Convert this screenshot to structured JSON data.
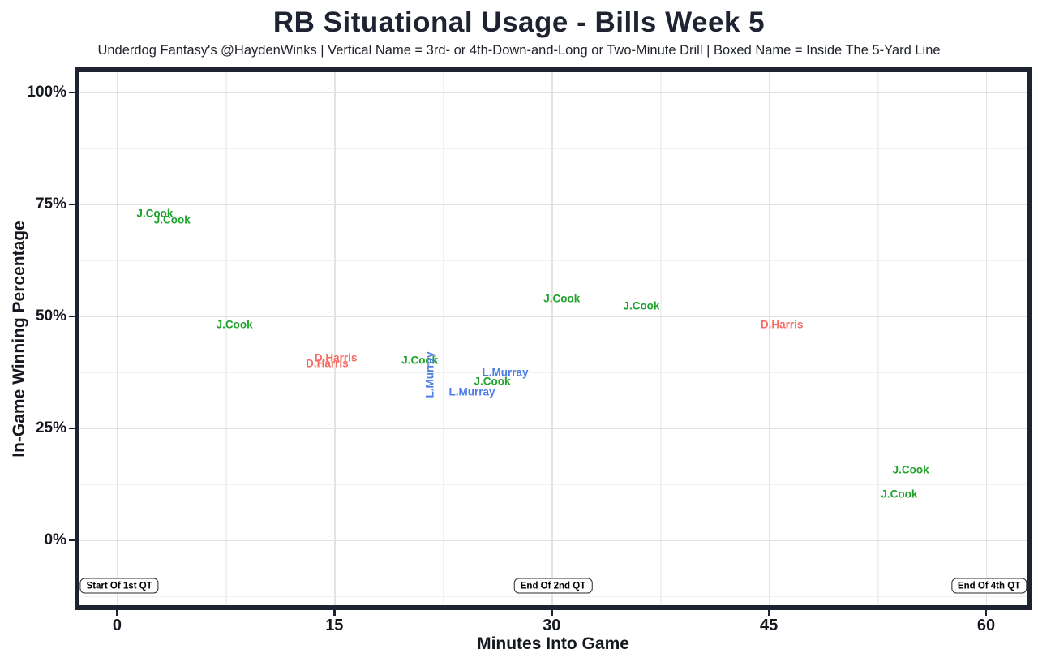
{
  "header": {
    "title": "RB Situational Usage - Bills Week 5",
    "subtitle": "Underdog Fantasy's @HaydenWinks | Vertical Name = 3rd- or 4th-Down-and-Long or Two-Minute Drill | Boxed Name = Inside The 5-Yard Line"
  },
  "chart_data": {
    "type": "scatter",
    "title": "RB Situational Usage - Bills Week 5",
    "xlabel": "Minutes Into Game",
    "ylabel": "In-Game Winning Percentage",
    "xlim": [
      -2.6,
      62.8
    ],
    "ylim": [
      -14.5,
      104.5
    ],
    "x_ticks": [
      {
        "value": 0,
        "label": "0"
      },
      {
        "value": 15,
        "label": "15"
      },
      {
        "value": 30,
        "label": "30"
      },
      {
        "value": 45,
        "label": "45"
      },
      {
        "value": 60,
        "label": "60"
      }
    ],
    "y_ticks": [
      {
        "value": 0,
        "label": "0%"
      },
      {
        "value": 25,
        "label": "25%"
      },
      {
        "value": 50,
        "label": "50%"
      },
      {
        "value": 75,
        "label": "75%"
      },
      {
        "value": 100,
        "label": "100%"
      }
    ],
    "grid": {
      "major_x": [
        0,
        15,
        30,
        45,
        60
      ],
      "minor_x": [
        7.5,
        22.5,
        37.5,
        52.5
      ],
      "major_y": [
        0,
        25,
        50,
        75,
        100
      ],
      "minor_y": [
        -12.5,
        12.5,
        37.5,
        62.5,
        87.5
      ]
    },
    "legend_note": "labels are player names plotted at usage moments; vertical = 3rd/4th-and-long or two-minute drill",
    "series": [
      {
        "name": "J.Cook",
        "color": "#1fa32b",
        "points": [
          {
            "x": 2.6,
            "y": 73.0
          },
          {
            "x": 3.8,
            "y": 71.5
          },
          {
            "x": 8.1,
            "y": 48.2
          },
          {
            "x": 20.9,
            "y": 40.2
          },
          {
            "x": 25.9,
            "y": 35.5
          },
          {
            "x": 30.7,
            "y": 54.0
          },
          {
            "x": 36.2,
            "y": 52.4
          },
          {
            "x": 54.8,
            "y": 15.8
          },
          {
            "x": 54.0,
            "y": 10.3
          }
        ]
      },
      {
        "name": "D.Harris",
        "color": "#f8695f",
        "points": [
          {
            "x": 15.1,
            "y": 40.8
          },
          {
            "x": 14.5,
            "y": 39.5
          },
          {
            "x": 45.9,
            "y": 48.2
          }
        ]
      },
      {
        "name": "L.Murray",
        "color": "#4e7de9",
        "points": [
          {
            "x": 21.6,
            "y": 37.0,
            "vertical": true
          },
          {
            "x": 26.8,
            "y": 37.5
          },
          {
            "x": 24.5,
            "y": 33.2
          }
        ]
      }
    ],
    "annotations": [
      {
        "label": "Start Of 1st QT",
        "x": 0.15,
        "y": -10.2
      },
      {
        "label": "End Of 2nd QT",
        "x": 30.1,
        "y": -10.2
      },
      {
        "label": "End Of 4th QT",
        "x": 60.2,
        "y": -10.2
      }
    ]
  },
  "colors": {
    "panel_border": "#1d2330",
    "grid_major": "#e3e3e3",
    "grid_minor": "#f1f1f1",
    "text_dark": "#15181f"
  }
}
